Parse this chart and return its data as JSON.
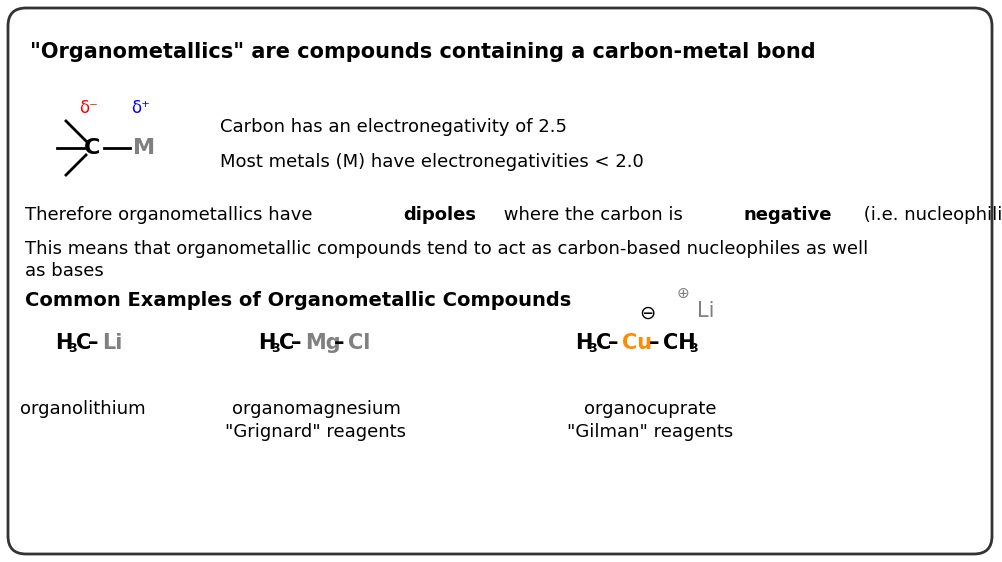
{
  "title": "\"Organometallics\" are compounds containing a carbon-metal bond",
  "bg_color": "#ffffff",
  "border_color": "#333333",
  "text_color": "#000000",
  "red_color": "#ff0000",
  "blue_color": "#0000ff",
  "gray_color": "#808080",
  "orange_color": "#ff8c00",
  "line1": "Carbon has an electronegativity of 2.5",
  "line2": "Most metals (M) have electronegativities < 2.0",
  "common_examples_title": "Common Examples of Organometallic Compounds",
  "example1_label": "organolithium",
  "example2_label1": "organomagnesium",
  "example2_label2": "\"Grignard\" reagents",
  "example3_label1": "organocuprate",
  "example3_label2": "\"Gilman\" reagents",
  "fs_title": 15,
  "fs_body": 13,
  "fs_formula": 15,
  "fs_label": 13,
  "fs_sub": 9,
  "fs_delta": 12
}
